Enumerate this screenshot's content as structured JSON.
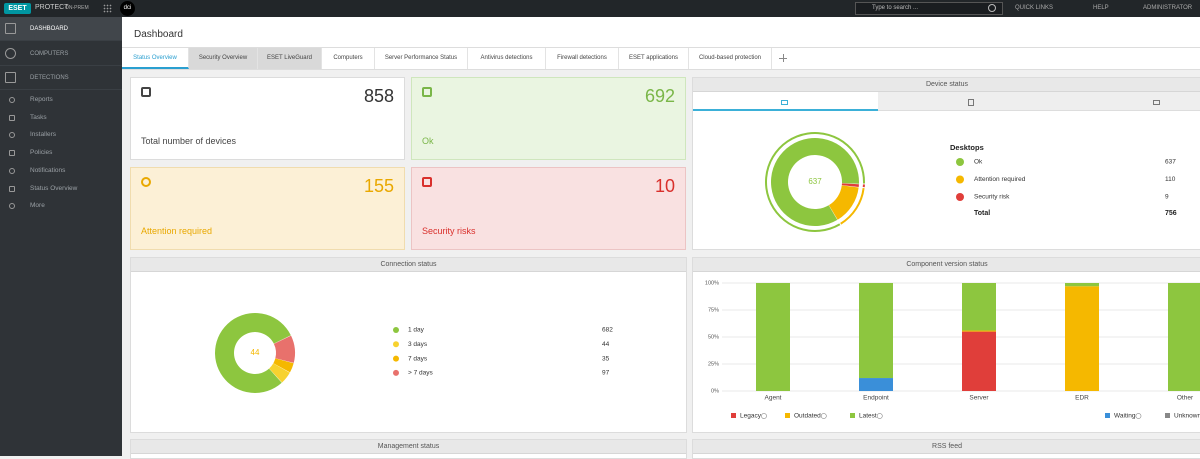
{
  "topbar": {
    "logo": "ESET",
    "product": "PROTECT",
    "edition": "ON-PREM",
    "user_badge": "dci",
    "search_placeholder": "Type to search ...",
    "quick_links": "QUICK LINKS",
    "help": "HELP",
    "user": "ADMINISTRATOR"
  },
  "sidebar": {
    "items": [
      "DASHBOARD",
      "COMPUTERS",
      "DETECTIONS",
      "Reports",
      "Tasks",
      "Installers",
      "Policies",
      "Notifications",
      "Status Overview",
      "More"
    ]
  },
  "page_title": "Dashboard",
  "tabs": [
    "Status Overview",
    "Security Overview",
    "ESET LiveGuard",
    "Computers",
    "Server Performance Status",
    "Antivirus detections",
    "Firewall detections",
    "ESET applications",
    "Cloud-based protection"
  ],
  "tiles": [
    {
      "label": "Total number of devices",
      "value": 858
    },
    {
      "label": "Ok",
      "value": 692
    },
    {
      "label": "Attention required",
      "value": 155
    },
    {
      "label": "Security risks",
      "value": 10
    }
  ],
  "device_status": {
    "title": "Device status",
    "heading": "Desktops",
    "rows": [
      {
        "label": "Ok",
        "value": 637,
        "color": "#8dc63f"
      },
      {
        "label": "Attention required",
        "value": 110,
        "color": "#f5b800"
      },
      {
        "label": "Security risk",
        "value": 9,
        "color": "#e03e3a"
      }
    ],
    "total_label": "Total",
    "total": 756
  },
  "connection_status": {
    "title": "Connection status",
    "rows": [
      {
        "label": "1 day",
        "value": 682,
        "color": "#8dc63f"
      },
      {
        "label": "3 days",
        "value": 44,
        "color": "#f7d22f"
      },
      {
        "label": "7 days",
        "value": 35,
        "color": "#f5b800"
      },
      {
        "label": "> 7 days",
        "value": 97,
        "color": "#e8716c"
      }
    ]
  },
  "component_version_status": {
    "title": "Component version status",
    "categories": [
      "Agent",
      "Endpoint",
      "Server",
      "EDR",
      "Other"
    ],
    "ylim": [
      0,
      100
    ],
    "yticks": [
      {
        "value": 0,
        "label": "0%"
      },
      {
        "value": 25,
        "label": "25%"
      },
      {
        "value": 50,
        "label": "50%"
      },
      {
        "value": 75,
        "label": "75%"
      },
      {
        "value": 100,
        "label": "100%"
      }
    ],
    "series": [
      {
        "name": "Waiting",
        "color": "#3a8fd9",
        "values": [
          0,
          12,
          0,
          0,
          0
        ]
      },
      {
        "name": "Legacy",
        "color": "#e03e3a",
        "values": [
          0,
          0,
          55,
          0,
          0
        ]
      },
      {
        "name": "Outdated",
        "color": "#f5b800",
        "values": [
          0,
          0,
          1,
          97,
          0
        ]
      },
      {
        "name": "Latest",
        "color": "#8dc63f",
        "values": [
          100,
          88,
          44,
          3,
          100
        ]
      },
      {
        "name": "Unknown",
        "color": "#888888",
        "values": [
          0,
          0,
          0,
          0,
          0
        ]
      }
    ]
  },
  "bottom_panels": [
    "Management status",
    "RSS feed"
  ]
}
